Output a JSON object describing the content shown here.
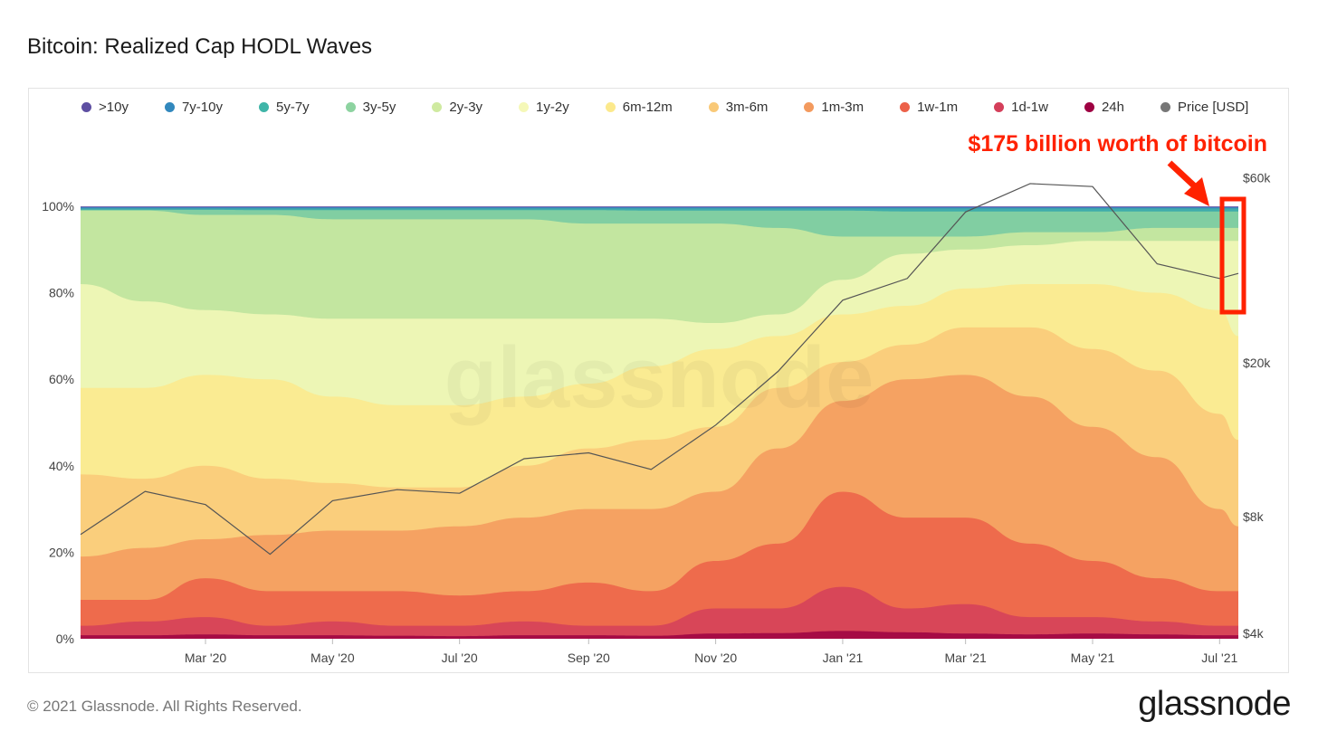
{
  "title": "Bitcoin: Realized Cap HODL Waves",
  "footer": "© 2021 Glassnode. All Rights Reserved.",
  "brand": "glassnode",
  "watermark": "glassnode",
  "annotation": {
    "text": "$175 billion worth of bitcoin",
    "color": "#ff2200"
  },
  "legend": [
    {
      "label": ">10y",
      "color": "#5e4fa2"
    },
    {
      "label": "7y-10y",
      "color": "#3288bd"
    },
    {
      "label": "5y-7y",
      "color": "#3fb5a8"
    },
    {
      "label": "3y-5y",
      "color": "#8dd3a0"
    },
    {
      "label": "2y-3y",
      "color": "#cfeaa0"
    },
    {
      "label": "1y-2y",
      "color": "#f5f8b8"
    },
    {
      "label": "6m-12m",
      "color": "#fce98c"
    },
    {
      "label": "3m-6m",
      "color": "#f9c978"
    },
    {
      "label": "1m-3m",
      "color": "#f39a5e"
    },
    {
      "label": "1w-1m",
      "color": "#ec6149"
    },
    {
      "label": "1d-1w",
      "color": "#d43f5a"
    },
    {
      "label": "24h",
      "color": "#9e0142"
    },
    {
      "label": "Price [USD]",
      "color": "#777777"
    }
  ],
  "chart_data": {
    "type": "area",
    "stacked": true,
    "x": [
      "2020-01-01",
      "2020-02-01",
      "2020-03-01",
      "2020-04-01",
      "2020-05-01",
      "2020-06-01",
      "2020-07-01",
      "2020-08-01",
      "2020-09-01",
      "2020-10-01",
      "2020-11-01",
      "2020-12-01",
      "2021-01-01",
      "2021-02-01",
      "2021-03-01",
      "2021-04-01",
      "2021-05-01",
      "2021-06-01",
      "2021-07-01",
      "2021-07-10"
    ],
    "x_ticks": [
      "Mar '20",
      "May '20",
      "Jul '20",
      "Sep '20",
      "Nov '20",
      "Jan '21",
      "Mar '21",
      "May '21",
      "Jul '21"
    ],
    "y_ticks": [
      "0%",
      "20%",
      "40%",
      "60%",
      "80%",
      "100%"
    ],
    "y2_ticks": [
      "$4k",
      "$8k",
      "$20k",
      "$60k"
    ],
    "y2_scale": "log",
    "ylim": [
      0,
      100
    ],
    "y2lim": [
      4000,
      70000
    ],
    "grid": false,
    "legend_position": "top",
    "series": [
      {
        "name": "24h",
        "values": [
          0.8,
          0.8,
          1.0,
          0.8,
          0.8,
          0.7,
          0.6,
          0.8,
          0.8,
          0.7,
          1.2,
          1.3,
          1.8,
          1.5,
          1.2,
          1.0,
          1.2,
          1.0,
          0.8,
          0.8
        ]
      },
      {
        "name": "1d-1w",
        "values": [
          3,
          4,
          5,
          3,
          4,
          3,
          3,
          4,
          3,
          3,
          7,
          7,
          12,
          7,
          8,
          5,
          5,
          4,
          3,
          3
        ]
      },
      {
        "name": "1w-1m",
        "values": [
          9,
          9,
          14,
          11,
          11,
          11,
          10,
          11,
          13,
          11,
          18,
          22,
          34,
          28,
          28,
          22,
          18,
          14,
          11,
          11
        ]
      },
      {
        "name": "1m-3m",
        "values": [
          19,
          21,
          23,
          24,
          25,
          25,
          26,
          28,
          30,
          30,
          34,
          44,
          55,
          60,
          61,
          56,
          49,
          42,
          30,
          26
        ]
      },
      {
        "name": "3m-6m",
        "values": [
          38,
          37,
          40,
          37,
          36,
          35,
          35,
          40,
          44,
          46,
          49,
          58,
          64,
          68,
          72,
          72,
          67,
          62,
          52,
          46
        ]
      },
      {
        "name": "6m-12m",
        "values": [
          58,
          58,
          61,
          60,
          56,
          54,
          54,
          56,
          59,
          63,
          67,
          70,
          75,
          77,
          81,
          82,
          82,
          80,
          76,
          70
        ]
      },
      {
        "name": "1y-2y",
        "values": [
          82,
          78,
          76,
          75,
          74,
          74,
          74,
          74,
          74,
          74,
          73,
          75,
          83,
          89,
          90,
          91,
          92,
          92,
          92,
          92
        ]
      },
      {
        "name": "2y-3y",
        "values": [
          99,
          99,
          98,
          98,
          97,
          97,
          97,
          97,
          96,
          96,
          96,
          95,
          93,
          93,
          93,
          94,
          94,
          95,
          95,
          95
        ]
      },
      {
        "name": "3y-5y",
        "values": [
          99.2,
          99.2,
          99.2,
          99.1,
          99.1,
          99.1,
          99.1,
          99.1,
          99.1,
          99,
          99,
          99,
          99,
          98.8,
          98.8,
          98.8,
          98.8,
          98.8,
          98.8,
          98.8
        ]
      },
      {
        "name": "5y-7y",
        "values": [
          99.5,
          99.5,
          99.5,
          99.5,
          99.5,
          99.5,
          99.5,
          99.5,
          99.5,
          99.5,
          99.5,
          99.5,
          99.5,
          99.5,
          99.5,
          99.5,
          99.5,
          99.5,
          99.5,
          99.5
        ]
      },
      {
        "name": "7y-10y",
        "values": [
          99.8,
          99.8,
          99.8,
          99.8,
          99.8,
          99.8,
          99.8,
          99.8,
          99.8,
          99.8,
          99.8,
          99.8,
          99.8,
          99.8,
          99.8,
          99.8,
          99.8,
          99.8,
          99.8,
          99.8
        ]
      },
      {
        "name": ">10y",
        "values": [
          100,
          100,
          100,
          100,
          100,
          100,
          100,
          100,
          100,
          100,
          100,
          100,
          100,
          100,
          100,
          100,
          100,
          100,
          100,
          100
        ]
      }
    ],
    "price": {
      "name": "Price [USD]",
      "values": [
        7200,
        9300,
        8600,
        6400,
        8800,
        9400,
        9200,
        11300,
        11700,
        10600,
        13800,
        19000,
        29000,
        33000,
        49000,
        58000,
        57000,
        36000,
        33000,
        34000
      ]
    }
  }
}
